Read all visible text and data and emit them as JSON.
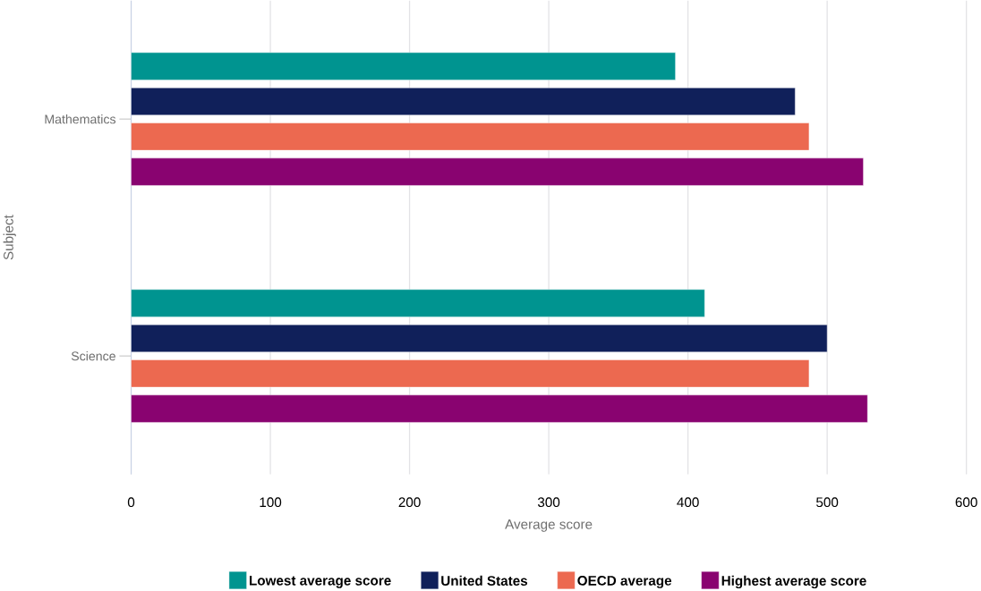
{
  "chart_data": {
    "type": "bar",
    "orientation": "horizontal",
    "xlabel": "Average score",
    "ylabel": "Subject",
    "categories": [
      "Mathematics",
      "Science"
    ],
    "series": [
      {
        "name": "Lowest average score",
        "color": "#009490",
        "values": [
          391,
          412
        ]
      },
      {
        "name": "United States",
        "color": "#10205a",
        "values": [
          477,
          500
        ]
      },
      {
        "name": "OECD average",
        "color": "#ec6950",
        "values": [
          487,
          487
        ]
      },
      {
        "name": "Highest average score",
        "color": "#890370",
        "values": [
          526,
          529
        ]
      }
    ],
    "xlim": [
      0,
      600
    ],
    "xticks": [
      0,
      100,
      200,
      300,
      400,
      500,
      600
    ],
    "grid": "x",
    "legend": "bottom"
  }
}
